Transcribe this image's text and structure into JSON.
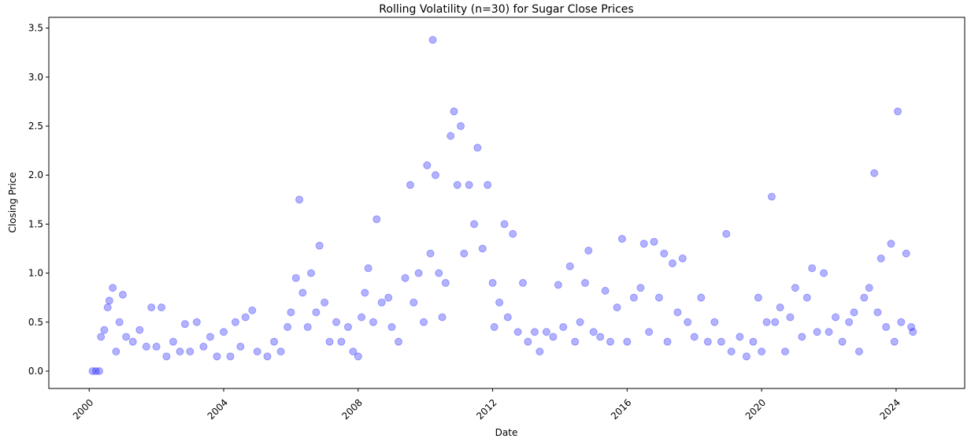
{
  "chart_data": {
    "type": "scatter",
    "title": "Rolling Volatility (n=30) for Sugar Close Prices",
    "x_label": "Date",
    "y_label": "Closing Price",
    "color": "#0000ff",
    "alpha": 0.3,
    "grid": false,
    "xlim": [
      1998.8,
      2026.04
    ],
    "ylim": [
      -0.177,
      3.61
    ],
    "xticks": [
      2000,
      2004,
      2008,
      2012,
      2016,
      2020,
      2024
    ],
    "yticks": [
      {
        "value": 0,
        "label": "0.0"
      },
      0.5,
      {
        "value": 1,
        "label": "1.0"
      },
      1.5,
      {
        "value": 2,
        "label": "2.0"
      },
      2.5,
      {
        "value": 3,
        "label": "3.0"
      },
      3.5
    ],
    "x": [
      2000.1,
      2000.2,
      2000.3,
      2000.35,
      2000.45,
      2000.55,
      2000.6,
      2000.7,
      2000.8,
      2000.9,
      2001.0,
      2001.1,
      2001.3,
      2001.5,
      2001.7,
      2001.85,
      2002.0,
      2002.15,
      2002.3,
      2002.5,
      2002.7,
      2002.85,
      2003.0,
      2003.2,
      2003.4,
      2003.6,
      2003.8,
      2004.0,
      2004.2,
      2004.35,
      2004.5,
      2004.65,
      2004.85,
      2005.0,
      2005.3,
      2005.5,
      2005.7,
      2005.9,
      2006.0,
      2006.15,
      2006.25,
      2006.35,
      2006.5,
      2006.6,
      2006.75,
      2006.85,
      2007.0,
      2007.15,
      2007.35,
      2007.5,
      2007.7,
      2007.85,
      2008.0,
      2008.1,
      2008.2,
      2008.3,
      2008.45,
      2008.55,
      2008.7,
      2008.9,
      2009.0,
      2009.2,
      2009.4,
      2009.55,
      2009.65,
      2009.8,
      2009.95,
      2010.05,
      2010.15,
      2010.22,
      2010.3,
      2010.4,
      2010.5,
      2010.6,
      2010.75,
      2010.85,
      2010.95,
      2011.05,
      2011.15,
      2011.3,
      2011.45,
      2011.55,
      2011.7,
      2011.85,
      2012.0,
      2012.05,
      2012.2,
      2012.35,
      2012.45,
      2012.6,
      2012.75,
      2012.9,
      2013.05,
      2013.25,
      2013.4,
      2013.6,
      2013.8,
      2013.95,
      2014.1,
      2014.3,
      2014.45,
      2014.6,
      2014.75,
      2014.85,
      2015.0,
      2015.2,
      2015.35,
      2015.5,
      2015.7,
      2015.85,
      2016.0,
      2016.2,
      2016.4,
      2016.5,
      2016.65,
      2016.8,
      2016.95,
      2017.1,
      2017.2,
      2017.35,
      2017.5,
      2017.65,
      2017.8,
      2018.0,
      2018.2,
      2018.4,
      2018.6,
      2018.8,
      2018.95,
      2019.1,
      2019.35,
      2019.55,
      2019.75,
      2019.9,
      2020.0,
      2020.15,
      2020.3,
      2020.4,
      2020.55,
      2020.7,
      2020.85,
      2021.0,
      2021.2,
      2021.35,
      2021.5,
      2021.65,
      2021.85,
      2022.0,
      2022.2,
      2022.4,
      2022.6,
      2022.75,
      2022.9,
      2023.05,
      2023.2,
      2023.35,
      2023.45,
      2023.55,
      2023.7,
      2023.85,
      2023.95,
      2024.05,
      2024.15,
      2024.3,
      2024.45,
      2024.5
    ],
    "values": [
      0,
      0,
      0,
      0.35,
      0.42,
      0.65,
      0.72,
      0.85,
      0.2,
      0.5,
      0.78,
      0.35,
      0.3,
      0.42,
      0.25,
      0.65,
      0.25,
      0.65,
      0.15,
      0.3,
      0.2,
      0.48,
      0.2,
      0.5,
      0.25,
      0.35,
      0.15,
      0.4,
      0.15,
      0.5,
      0.25,
      0.55,
      0.62,
      0.2,
      0.15,
      0.3,
      0.2,
      0.45,
      0.6,
      0.95,
      1.75,
      0.8,
      0.45,
      1.0,
      0.6,
      1.28,
      0.7,
      0.3,
      0.5,
      0.3,
      0.45,
      0.2,
      0.15,
      0.55,
      0.8,
      1.05,
      0.5,
      1.55,
      0.7,
      0.75,
      0.45,
      0.3,
      0.95,
      1.9,
      0.7,
      1.0,
      0.5,
      2.1,
      1.2,
      3.38,
      2.0,
      1.0,
      0.55,
      0.9,
      2.4,
      2.65,
      1.9,
      2.5,
      1.2,
      1.9,
      1.5,
      2.28,
      1.25,
      1.9,
      0.9,
      0.45,
      0.7,
      1.5,
      0.55,
      1.4,
      0.4,
      0.9,
      0.3,
      0.4,
      0.2,
      0.4,
      0.35,
      0.88,
      0.45,
      1.07,
      0.3,
      0.5,
      0.9,
      1.23,
      0.4,
      0.35,
      0.82,
      0.3,
      0.65,
      1.35,
      0.3,
      0.75,
      0.85,
      1.3,
      0.4,
      1.32,
      0.75,
      1.2,
      0.3,
      1.1,
      0.6,
      1.15,
      0.5,
      0.35,
      0.75,
      0.3,
      0.5,
      0.3,
      1.4,
      0.2,
      0.35,
      0.15,
      0.3,
      0.75,
      0.2,
      0.5,
      1.78,
      0.5,
      0.65,
      0.2,
      0.55,
      0.85,
      0.35,
      0.75,
      1.05,
      0.4,
      1.0,
      0.4,
      0.55,
      0.3,
      0.5,
      0.6,
      0.2,
      0.75,
      0.85,
      2.02,
      0.6,
      1.15,
      0.45,
      1.3,
      0.3,
      2.65,
      0.5,
      1.2,
      0.45,
      0.4
    ]
  }
}
